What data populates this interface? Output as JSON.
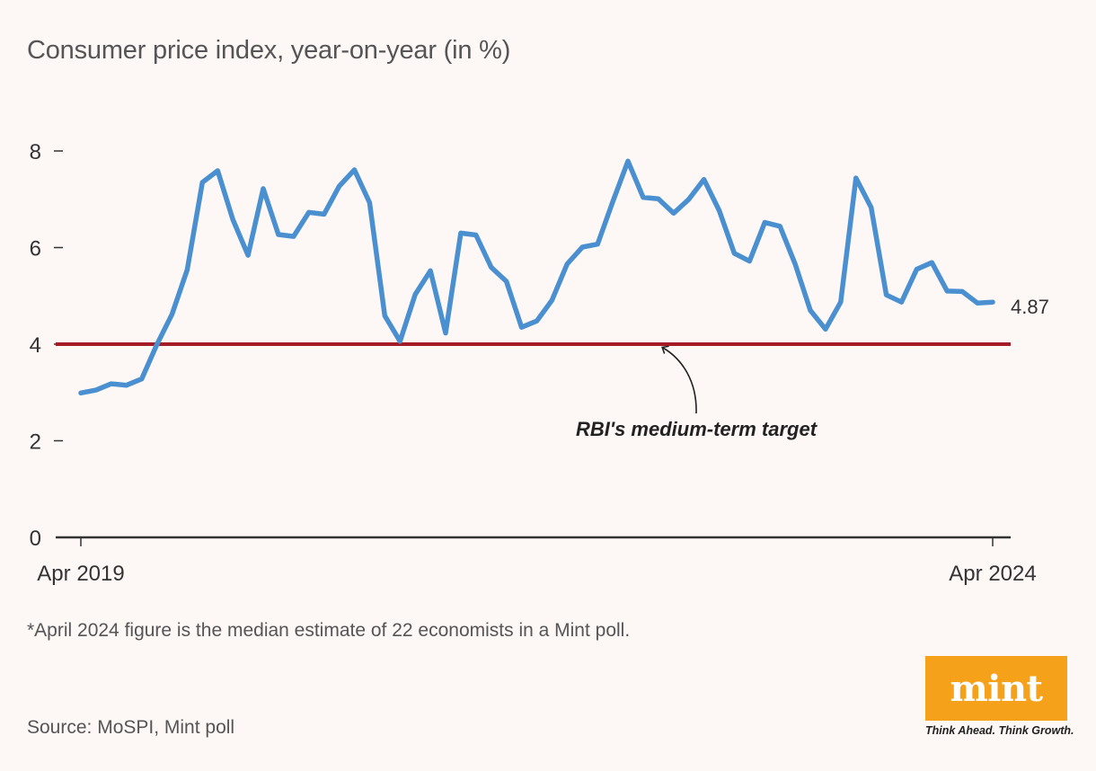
{
  "header": {
    "title": "Consumer price index, year-on-year (in %)"
  },
  "chart_data": {
    "type": "line",
    "title": "Consumer price index, year-on-year (in %)",
    "xlabel": "",
    "ylabel": "",
    "ylim": [
      0,
      8
    ],
    "yticks": [
      "0",
      "2",
      "4",
      "6",
      "8"
    ],
    "x_tick_labels": [
      "Apr 2019",
      "Apr 2024"
    ],
    "x": [
      "2019-04",
      "2019-05",
      "2019-06",
      "2019-07",
      "2019-08",
      "2019-09",
      "2019-10",
      "2019-11",
      "2019-12",
      "2020-01",
      "2020-02",
      "2020-03",
      "2020-04",
      "2020-05",
      "2020-06",
      "2020-07",
      "2020-08",
      "2020-09",
      "2020-10",
      "2020-11",
      "2020-12",
      "2021-01",
      "2021-02",
      "2021-03",
      "2021-04",
      "2021-05",
      "2021-06",
      "2021-07",
      "2021-08",
      "2021-09",
      "2021-10",
      "2021-11",
      "2021-12",
      "2022-01",
      "2022-02",
      "2022-03",
      "2022-04",
      "2022-05",
      "2022-06",
      "2022-07",
      "2022-08",
      "2022-09",
      "2022-10",
      "2022-11",
      "2022-12",
      "2023-01",
      "2023-02",
      "2023-03",
      "2023-04",
      "2023-05",
      "2023-06",
      "2023-07",
      "2023-08",
      "2023-09",
      "2023-10",
      "2023-11",
      "2023-12",
      "2024-01",
      "2024-02",
      "2024-03",
      "2024-04"
    ],
    "series": [
      {
        "name": "",
        "color": "#4a90d0",
        "values": [
          2.99,
          3.05,
          3.18,
          3.15,
          3.28,
          3.99,
          4.62,
          5.54,
          7.35,
          7.59,
          6.58,
          5.84,
          7.22,
          6.27,
          6.23,
          6.73,
          6.69,
          7.27,
          7.61,
          6.93,
          4.59,
          4.06,
          5.03,
          5.52,
          4.23,
          6.3,
          6.26,
          5.59,
          5.3,
          4.35,
          4.48,
          4.91,
          5.66,
          6.01,
          6.07,
          6.95,
          7.79,
          7.04,
          7.01,
          6.71,
          7.0,
          7.41,
          6.77,
          5.88,
          5.72,
          6.52,
          6.44,
          5.66,
          4.7,
          4.31,
          4.87,
          7.44,
          6.83,
          5.02,
          4.87,
          5.55,
          5.69,
          5.1,
          5.09,
          4.85,
          4.87
        ]
      }
    ],
    "reference_line": {
      "value": 4,
      "label": "RBI's medium-term target",
      "color": "#a31c27"
    },
    "end_label": "4.87",
    "grid": false,
    "legend": "none"
  },
  "footnote": "*April 2024 figure is the median estimate of 22 economists in a Mint poll.",
  "source": "Source: MoSPI, Mint poll",
  "logo": {
    "text": "mint",
    "tagline": "Think Ahead. Think Growth.",
    "color": "#f6a11a"
  }
}
